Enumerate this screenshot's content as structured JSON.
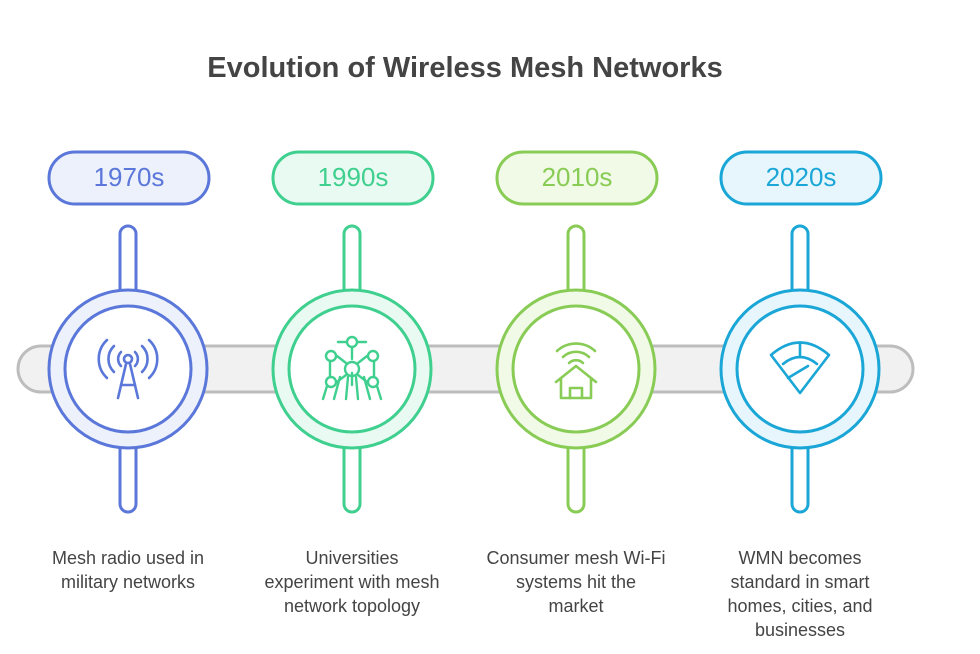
{
  "title": "Evolution of Wireless Mesh Networks",
  "milestones": [
    {
      "year": "1970s",
      "description": "Mesh radio used in military networks",
      "icon": "radio-tower-icon",
      "color": "#5a77d9",
      "fill": "#edf1fc"
    },
    {
      "year": "1990s",
      "description": "Universities experiment with mesh network topology",
      "icon": "atomium-network-icon",
      "color": "#3fcf8e",
      "fill": "#e8faf1"
    },
    {
      "year": "2010s",
      "description": "Consumer mesh Wi-Fi systems hit the market",
      "icon": "home-wifi-icon",
      "color": "#89cc55",
      "fill": "#f1fae6"
    },
    {
      "year": "2020s",
      "description": "WMN becomes standard in smart homes, cities, and businesses",
      "icon": "wifi-sector-icon",
      "color": "#1aa6d6",
      "fill": "#e6f6fc"
    }
  ],
  "track_color": "#bdbdbd",
  "track_fill": "#f1f1f1"
}
